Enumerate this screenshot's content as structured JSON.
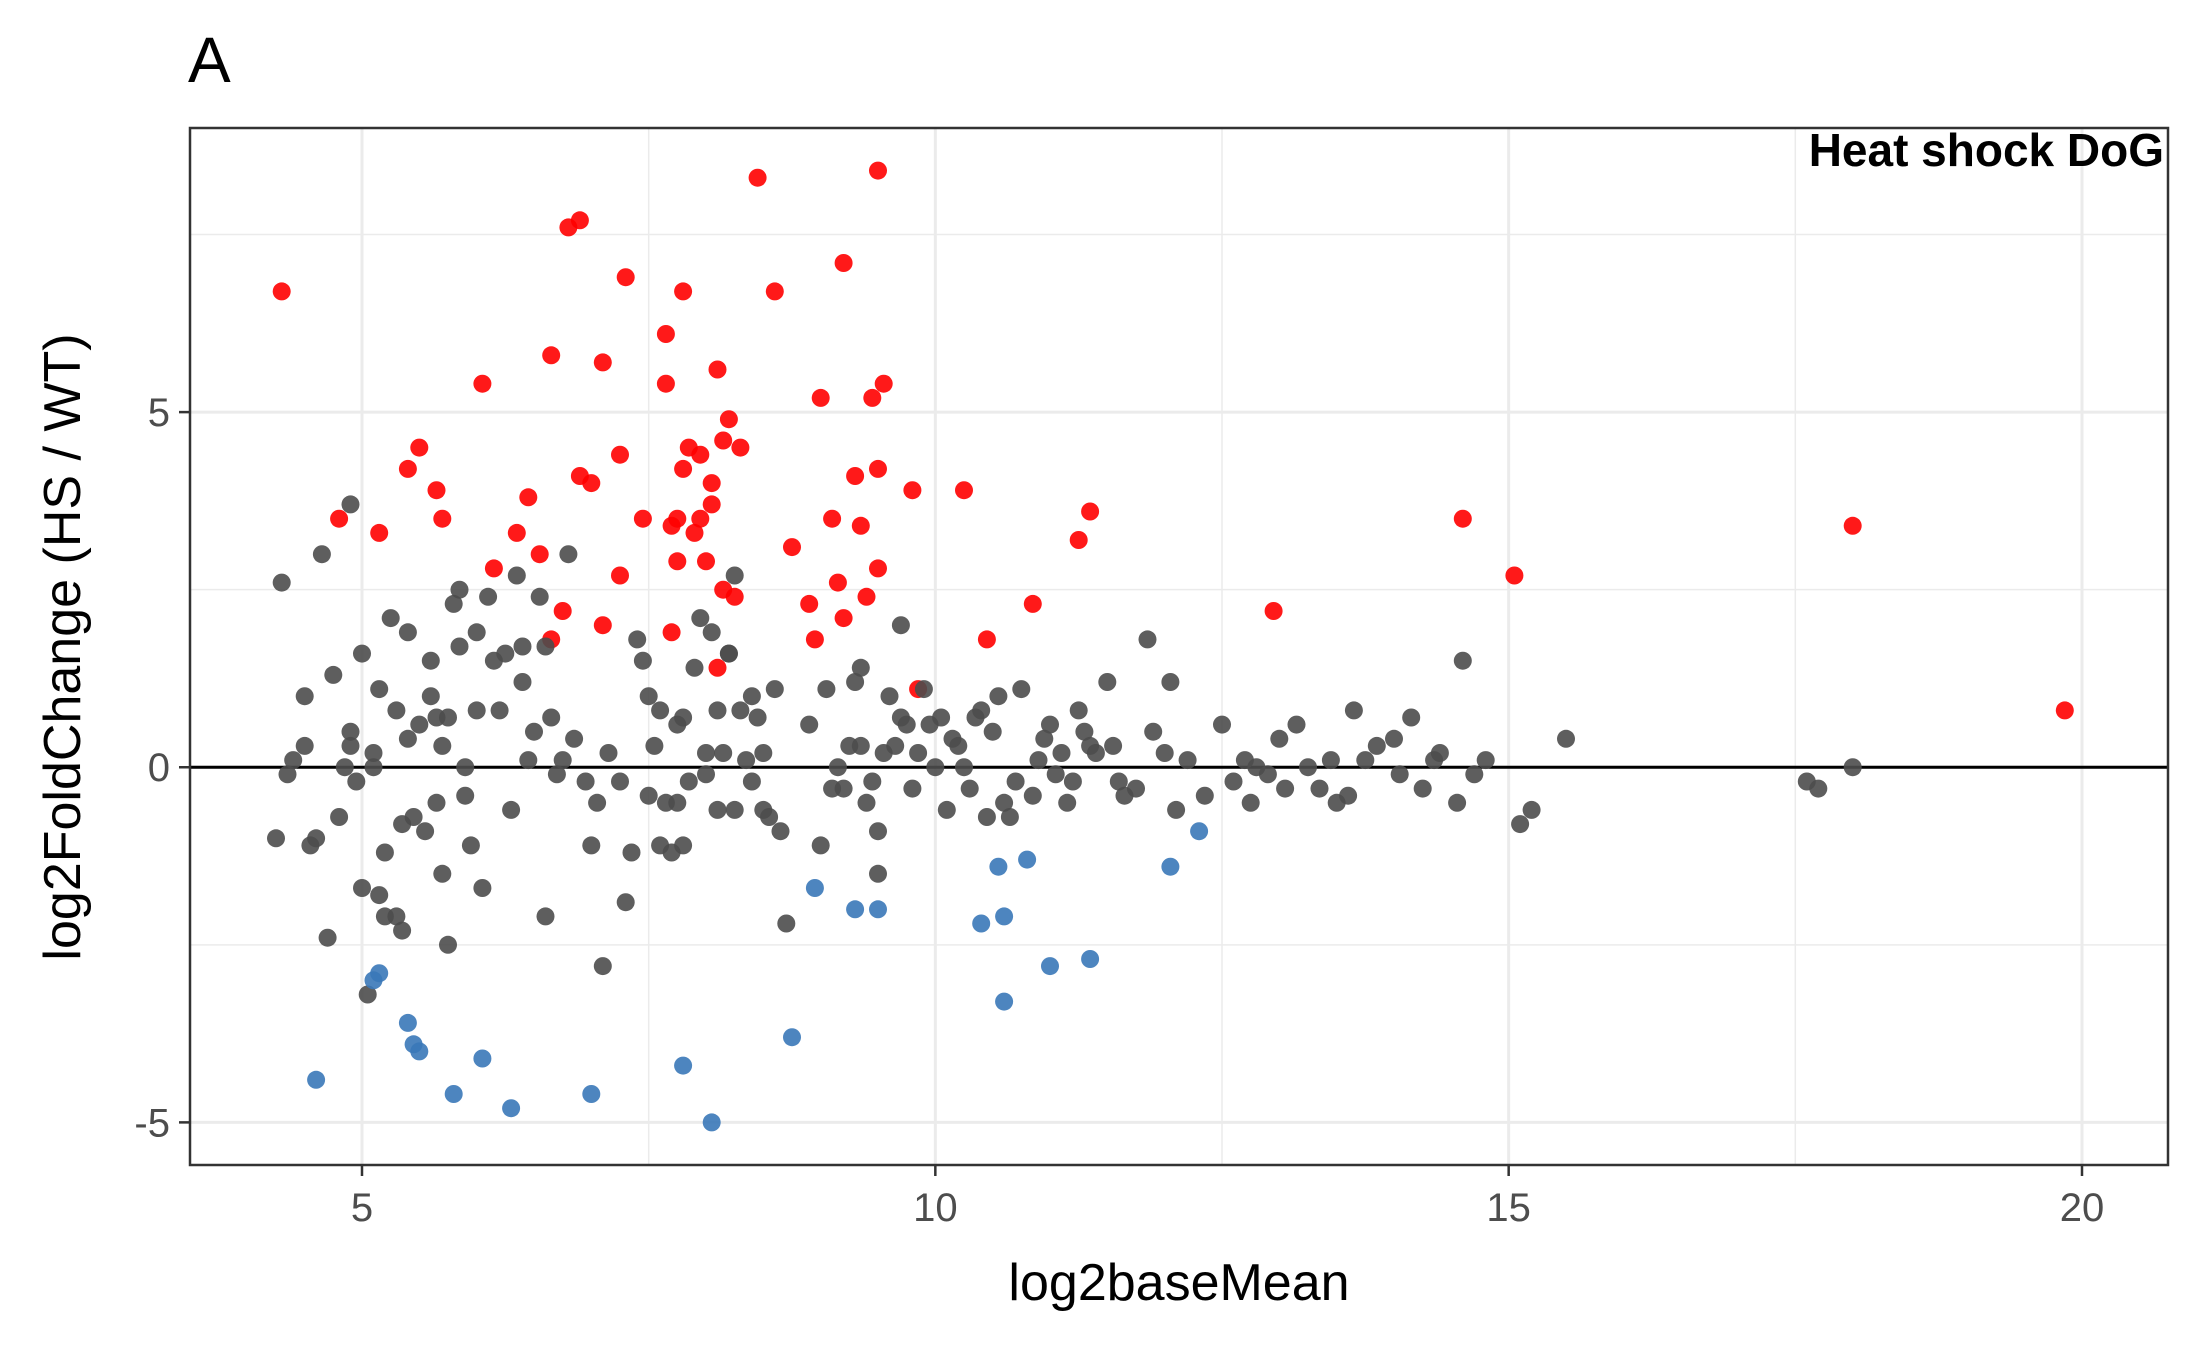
{
  "panel_label": "A",
  "colors": {
    "up": "#ff0000",
    "down": "#3a78b8",
    "ns": "#4d4d4d",
    "zero_line": "#000000",
    "grid": "#ebebeb",
    "panel_border": "#333333"
  },
  "chart_data": {
    "type": "scatter",
    "xlabel": "log2baseMean",
    "ylabel": "log2FoldChange (HS / WT)",
    "annotation": "Heat shock DoG",
    "xlim": [
      3.5,
      20.75
    ],
    "ylim": [
      -5.6,
      9.0
    ],
    "x_ticks": [
      5,
      10,
      15,
      20
    ],
    "x_tick_labels": [
      "5",
      "10",
      "15",
      "20"
    ],
    "y_ticks": [
      -5,
      0,
      5
    ],
    "y_tick_labels": [
      "-5",
      "0",
      "5"
    ],
    "grid": true,
    "reference_line_y": 0,
    "series": [
      {
        "key": "up",
        "points": [
          [
            4.3,
            6.7
          ],
          [
            4.8,
            3.5
          ],
          [
            5.15,
            3.3
          ],
          [
            5.4,
            4.2
          ],
          [
            5.5,
            4.5
          ],
          [
            5.65,
            3.9
          ],
          [
            5.7,
            3.5
          ],
          [
            6.05,
            5.4
          ],
          [
            6.15,
            2.8
          ],
          [
            6.35,
            3.3
          ],
          [
            6.45,
            3.8
          ],
          [
            6.55,
            3.0
          ],
          [
            6.65,
            5.8
          ],
          [
            6.65,
            1.8
          ],
          [
            6.75,
            2.2
          ],
          [
            6.8,
            7.6
          ],
          [
            6.9,
            7.7
          ],
          [
            6.9,
            4.1
          ],
          [
            7.0,
            4.0
          ],
          [
            7.1,
            2.0
          ],
          [
            7.1,
            5.7
          ],
          [
            7.25,
            4.4
          ],
          [
            7.25,
            2.7
          ],
          [
            7.3,
            6.9
          ],
          [
            7.45,
            3.5
          ],
          [
            7.65,
            5.4
          ],
          [
            7.65,
            6.1
          ],
          [
            7.7,
            1.9
          ],
          [
            7.7,
            3.4
          ],
          [
            7.75,
            3.5
          ],
          [
            7.75,
            2.9
          ],
          [
            7.8,
            4.2
          ],
          [
            7.8,
            6.7
          ],
          [
            7.85,
            4.5
          ],
          [
            7.9,
            3.3
          ],
          [
            7.95,
            3.5
          ],
          [
            7.95,
            4.4
          ],
          [
            8.0,
            2.9
          ],
          [
            8.05,
            4.0
          ],
          [
            8.05,
            3.7
          ],
          [
            8.1,
            1.4
          ],
          [
            8.1,
            5.6
          ],
          [
            8.15,
            4.6
          ],
          [
            8.15,
            2.5
          ],
          [
            8.2,
            4.9
          ],
          [
            8.25,
            2.4
          ],
          [
            8.3,
            4.5
          ],
          [
            8.45,
            8.3
          ],
          [
            8.6,
            6.7
          ],
          [
            8.75,
            3.1
          ],
          [
            8.9,
            2.3
          ],
          [
            8.95,
            1.8
          ],
          [
            9.0,
            5.2
          ],
          [
            9.1,
            3.5
          ],
          [
            9.15,
            2.6
          ],
          [
            9.2,
            7.1
          ],
          [
            9.2,
            2.1
          ],
          [
            9.3,
            4.1
          ],
          [
            9.35,
            3.4
          ],
          [
            9.4,
            2.4
          ],
          [
            9.45,
            5.2
          ],
          [
            9.5,
            2.8
          ],
          [
            9.5,
            8.4
          ],
          [
            9.5,
            4.2
          ],
          [
            9.55,
            5.4
          ],
          [
            9.8,
            3.9
          ],
          [
            9.85,
            1.1
          ],
          [
            10.25,
            3.9
          ],
          [
            10.45,
            1.8
          ],
          [
            10.85,
            2.3
          ],
          [
            11.25,
            3.2
          ],
          [
            11.35,
            3.6
          ],
          [
            12.95,
            2.2
          ],
          [
            14.6,
            3.5
          ],
          [
            15.05,
            2.7
          ],
          [
            18.0,
            3.4
          ],
          [
            19.85,
            0.8
          ]
        ]
      },
      {
        "key": "ns",
        "points": [
          [
            4.25,
            -1.0
          ],
          [
            4.3,
            2.6
          ],
          [
            4.35,
            -0.1
          ],
          [
            4.4,
            0.1
          ],
          [
            4.5,
            0.3
          ],
          [
            4.5,
            1.0
          ],
          [
            4.55,
            -1.1
          ],
          [
            4.6,
            -1.0
          ],
          [
            4.65,
            3.0
          ],
          [
            4.7,
            -2.4
          ],
          [
            4.75,
            1.3
          ],
          [
            4.8,
            -0.7
          ],
          [
            4.85,
            0.0
          ],
          [
            4.9,
            0.3
          ],
          [
            4.9,
            0.5
          ],
          [
            4.9,
            3.7
          ],
          [
            4.95,
            -0.2
          ],
          [
            5.0,
            1.6
          ],
          [
            5.0,
            -1.7
          ],
          [
            5.05,
            -3.2
          ],
          [
            5.1,
            0.0
          ],
          [
            5.1,
            0.2
          ],
          [
            5.15,
            -1.8
          ],
          [
            5.15,
            1.1
          ],
          [
            5.2,
            -2.1
          ],
          [
            5.2,
            -1.2
          ],
          [
            5.25,
            2.1
          ],
          [
            5.3,
            -2.1
          ],
          [
            5.3,
            0.8
          ],
          [
            5.35,
            -2.3
          ],
          [
            5.35,
            -0.8
          ],
          [
            5.4,
            1.9
          ],
          [
            5.4,
            0.4
          ],
          [
            5.45,
            -0.7
          ],
          [
            5.5,
            0.6
          ],
          [
            5.55,
            -0.9
          ],
          [
            5.6,
            1.5
          ],
          [
            5.6,
            1.0
          ],
          [
            5.65,
            -0.5
          ],
          [
            5.65,
            0.7
          ],
          [
            5.7,
            0.3
          ],
          [
            5.7,
            -1.5
          ],
          [
            5.75,
            -2.5
          ],
          [
            5.75,
            0.7
          ],
          [
            5.8,
            2.3
          ],
          [
            5.85,
            2.5
          ],
          [
            5.85,
            1.7
          ],
          [
            5.9,
            0.0
          ],
          [
            5.9,
            -0.4
          ],
          [
            5.95,
            -1.1
          ],
          [
            6.0,
            1.9
          ],
          [
            6.0,
            0.8
          ],
          [
            6.05,
            -1.7
          ],
          [
            6.1,
            2.4
          ],
          [
            6.15,
            1.5
          ],
          [
            6.2,
            0.8
          ],
          [
            6.25,
            1.6
          ],
          [
            6.3,
            -0.6
          ],
          [
            6.35,
            2.7
          ],
          [
            6.4,
            1.7
          ],
          [
            6.4,
            1.2
          ],
          [
            6.45,
            0.1
          ],
          [
            6.5,
            0.5
          ],
          [
            6.55,
            2.4
          ],
          [
            6.6,
            1.7
          ],
          [
            6.6,
            -2.1
          ],
          [
            6.65,
            0.7
          ],
          [
            6.7,
            -0.1
          ],
          [
            6.75,
            0.1
          ],
          [
            6.8,
            3.0
          ],
          [
            6.85,
            0.4
          ],
          [
            6.95,
            -0.2
          ],
          [
            7.0,
            -1.1
          ],
          [
            7.05,
            -0.5
          ],
          [
            7.1,
            -2.8
          ],
          [
            7.15,
            0.2
          ],
          [
            7.25,
            -0.2
          ],
          [
            7.3,
            -1.9
          ],
          [
            7.35,
            -1.2
          ],
          [
            7.4,
            1.8
          ],
          [
            7.45,
            1.5
          ],
          [
            7.5,
            -0.4
          ],
          [
            7.5,
            1.0
          ],
          [
            7.55,
            0.3
          ],
          [
            7.6,
            0.8
          ],
          [
            7.6,
            -1.1
          ],
          [
            7.65,
            -0.5
          ],
          [
            7.7,
            -1.2
          ],
          [
            7.75,
            0.6
          ],
          [
            7.75,
            -0.5
          ],
          [
            7.8,
            -1.1
          ],
          [
            7.8,
            0.7
          ],
          [
            7.85,
            -0.2
          ],
          [
            7.9,
            1.4
          ],
          [
            7.95,
            2.1
          ],
          [
            8.0,
            0.2
          ],
          [
            8.0,
            -0.1
          ],
          [
            8.05,
            1.9
          ],
          [
            8.1,
            -0.6
          ],
          [
            8.1,
            0.8
          ],
          [
            8.15,
            0.2
          ],
          [
            8.2,
            1.6
          ],
          [
            8.2,
            1.6
          ],
          [
            8.25,
            -0.6
          ],
          [
            8.25,
            2.7
          ],
          [
            8.3,
            0.8
          ],
          [
            8.35,
            0.1
          ],
          [
            8.4,
            1.0
          ],
          [
            8.4,
            -0.2
          ],
          [
            8.45,
            0.7
          ],
          [
            8.5,
            -0.6
          ],
          [
            8.5,
            0.2
          ],
          [
            8.55,
            -0.7
          ],
          [
            8.6,
            1.1
          ],
          [
            8.65,
            -0.9
          ],
          [
            8.7,
            -2.2
          ],
          [
            8.9,
            0.6
          ],
          [
            9.0,
            -1.1
          ],
          [
            9.05,
            1.1
          ],
          [
            9.1,
            -0.3
          ],
          [
            9.15,
            0.0
          ],
          [
            9.2,
            -0.3
          ],
          [
            9.25,
            0.3
          ],
          [
            9.3,
            1.2
          ],
          [
            9.35,
            1.4
          ],
          [
            9.35,
            0.3
          ],
          [
            9.4,
            -0.5
          ],
          [
            9.45,
            -0.2
          ],
          [
            9.5,
            -0.9
          ],
          [
            9.5,
            -1.5
          ],
          [
            9.55,
            0.2
          ],
          [
            9.6,
            1.0
          ],
          [
            9.65,
            0.3
          ],
          [
            9.7,
            0.7
          ],
          [
            9.7,
            2.0
          ],
          [
            9.75,
            0.6
          ],
          [
            9.8,
            -0.3
          ],
          [
            9.85,
            0.2
          ],
          [
            9.9,
            1.1
          ],
          [
            9.95,
            0.6
          ],
          [
            10.0,
            0.0
          ],
          [
            10.05,
            0.7
          ],
          [
            10.1,
            -0.6
          ],
          [
            10.15,
            0.4
          ],
          [
            10.2,
            0.3
          ],
          [
            10.25,
            0.0
          ],
          [
            10.3,
            -0.3
          ],
          [
            10.35,
            0.7
          ],
          [
            10.4,
            0.8
          ],
          [
            10.45,
            -0.7
          ],
          [
            10.5,
            0.5
          ],
          [
            10.55,
            1.0
          ],
          [
            10.6,
            -0.5
          ],
          [
            10.65,
            -0.7
          ],
          [
            10.7,
            -0.2
          ],
          [
            10.75,
            1.1
          ],
          [
            10.85,
            -0.4
          ],
          [
            10.9,
            0.1
          ],
          [
            10.95,
            0.4
          ],
          [
            11.0,
            0.6
          ],
          [
            11.05,
            -0.1
          ],
          [
            11.1,
            0.2
          ],
          [
            11.15,
            -0.5
          ],
          [
            11.2,
            -0.2
          ],
          [
            11.25,
            0.8
          ],
          [
            11.3,
            0.5
          ],
          [
            11.35,
            0.3
          ],
          [
            11.4,
            0.2
          ],
          [
            11.5,
            1.2
          ],
          [
            11.55,
            0.3
          ],
          [
            11.6,
            -0.2
          ],
          [
            11.65,
            -0.4
          ],
          [
            11.75,
            -0.3
          ],
          [
            11.85,
            1.8
          ],
          [
            11.9,
            0.5
          ],
          [
            12.0,
            0.2
          ],
          [
            12.05,
            1.2
          ],
          [
            12.1,
            -0.6
          ],
          [
            12.2,
            0.1
          ],
          [
            12.35,
            -0.4
          ],
          [
            12.5,
            0.6
          ],
          [
            12.6,
            -0.2
          ],
          [
            12.7,
            0.1
          ],
          [
            12.75,
            -0.5
          ],
          [
            12.8,
            0.0
          ],
          [
            12.9,
            -0.1
          ],
          [
            13.0,
            0.4
          ],
          [
            13.05,
            -0.3
          ],
          [
            13.15,
            0.6
          ],
          [
            13.25,
            0.0
          ],
          [
            13.35,
            -0.3
          ],
          [
            13.45,
            0.1
          ],
          [
            13.5,
            -0.5
          ],
          [
            13.6,
            -0.4
          ],
          [
            13.65,
            0.8
          ],
          [
            13.75,
            0.1
          ],
          [
            13.85,
            0.3
          ],
          [
            14.0,
            0.4
          ],
          [
            14.05,
            -0.1
          ],
          [
            14.15,
            0.7
          ],
          [
            14.25,
            -0.3
          ],
          [
            14.35,
            0.1
          ],
          [
            14.4,
            0.2
          ],
          [
            14.55,
            -0.5
          ],
          [
            14.6,
            1.5
          ],
          [
            14.7,
            -0.1
          ],
          [
            14.8,
            0.1
          ],
          [
            15.1,
            -0.8
          ],
          [
            15.2,
            -0.6
          ],
          [
            15.5,
            0.4
          ],
          [
            17.6,
            -0.2
          ],
          [
            17.7,
            -0.3
          ],
          [
            18.0,
            0.0
          ]
        ]
      },
      {
        "key": "down",
        "points": [
          [
            4.6,
            -4.4
          ],
          [
            5.1,
            -3.0
          ],
          [
            5.15,
            -2.9
          ],
          [
            5.4,
            -3.6
          ],
          [
            5.45,
            -3.9
          ],
          [
            5.5,
            -4.0
          ],
          [
            5.8,
            -4.6
          ],
          [
            6.05,
            -4.1
          ],
          [
            6.3,
            -4.8
          ],
          [
            7.0,
            -4.6
          ],
          [
            7.8,
            -4.2
          ],
          [
            8.05,
            -5.0
          ],
          [
            8.75,
            -3.8
          ],
          [
            8.95,
            -1.7
          ],
          [
            9.3,
            -2.0
          ],
          [
            9.5,
            -2.0
          ],
          [
            10.4,
            -2.2
          ],
          [
            10.55,
            -1.4
          ],
          [
            10.6,
            -2.1
          ],
          [
            10.6,
            -3.3
          ],
          [
            10.8,
            -1.3
          ],
          [
            11.0,
            -2.8
          ],
          [
            11.35,
            -2.7
          ],
          [
            12.05,
            -1.4
          ],
          [
            12.3,
            -0.9
          ]
        ]
      }
    ]
  }
}
